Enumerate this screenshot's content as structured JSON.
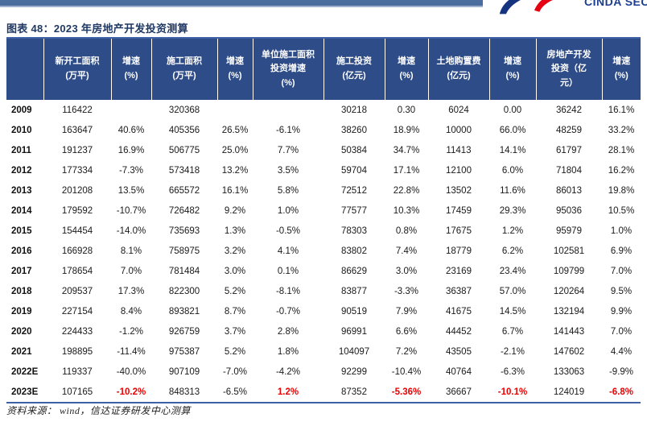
{
  "page": {
    "title": "图表 48：2023 年房地产开发投资测算",
    "logo_text": "CINDA SECUR",
    "source_label": "资料来源：",
    "source_text": "wind，信达证券研发中心测算"
  },
  "colors": {
    "header_bg": "#2E4C87",
    "top_bar": "#4A6D9E",
    "table_border": "#3F61A5",
    "title_color": "#1F3864",
    "highlight_red": "#EE0000",
    "logo_blue": "#16337F",
    "logo_red": "#E60012"
  },
  "table": {
    "headers": [
      "",
      "新开工面积\n(万平)",
      "增速\n(%)",
      "施工面积\n(万平)",
      "增速\n(%)",
      "单位施工面积\n投资增速\n(%)",
      "施工投资\n(亿元)",
      "增速\n(%)",
      "土地购置费\n(亿元)",
      "增速\n(%)",
      "房地产开发\n投资（亿\n元）",
      "增速\n(%)"
    ],
    "rows": [
      {
        "year": "2009",
        "cells": [
          "116422",
          "",
          "320368",
          "",
          "",
          "30218",
          "0.30",
          "6024",
          "0.00",
          "36242",
          "16.1%"
        ],
        "red": []
      },
      {
        "year": "2010",
        "cells": [
          "163647",
          "40.6%",
          "405356",
          "26.5%",
          "-6.1%",
          "38260",
          "18.9%",
          "10000",
          "66.0%",
          "48259",
          "33.2%"
        ],
        "red": []
      },
      {
        "year": "2011",
        "cells": [
          "191237",
          "16.9%",
          "506775",
          "25.0%",
          "7.7%",
          "50384",
          "34.7%",
          "11413",
          "14.1%",
          "61797",
          "28.1%"
        ],
        "red": []
      },
      {
        "year": "2012",
        "cells": [
          "177334",
          "-7.3%",
          "573418",
          "13.2%",
          "3.5%",
          "59704",
          "17.1%",
          "12100",
          "6.0%",
          "71804",
          "16.2%"
        ],
        "red": []
      },
      {
        "year": "2013",
        "cells": [
          "201208",
          "13.5%",
          "665572",
          "16.1%",
          "5.8%",
          "72512",
          "22.8%",
          "13502",
          "11.6%",
          "86013",
          "19.8%"
        ],
        "red": []
      },
      {
        "year": "2014",
        "cells": [
          "179592",
          "-10.7%",
          "726482",
          "9.2%",
          "1.0%",
          "77577",
          "10.3%",
          "17459",
          "29.3%",
          "95036",
          "10.5%"
        ],
        "red": []
      },
      {
        "year": "2015",
        "cells": [
          "154454",
          "-14.0%",
          "735693",
          "1.3%",
          "-0.5%",
          "78303",
          "0.8%",
          "17675",
          "1.2%",
          "95979",
          "1.0%"
        ],
        "red": []
      },
      {
        "year": "2016",
        "cells": [
          "166928",
          "8.1%",
          "758975",
          "3.2%",
          "4.1%",
          "83802",
          "7.4%",
          "18779",
          "6.2%",
          "102581",
          "6.9%"
        ],
        "red": []
      },
      {
        "year": "2017",
        "cells": [
          "178654",
          "7.0%",
          "781484",
          "3.0%",
          "0.1%",
          "86629",
          "3.0%",
          "23169",
          "23.4%",
          "109799",
          "7.0%"
        ],
        "red": []
      },
      {
        "year": "2018",
        "cells": [
          "209537",
          "17.3%",
          "822300",
          "5.2%",
          "-8.1%",
          "83877",
          "-3.3%",
          "36387",
          "57.0%",
          "120264",
          "9.5%"
        ],
        "red": []
      },
      {
        "year": "2019",
        "cells": [
          "227154",
          "8.4%",
          "893821",
          "8.7%",
          "-0.7%",
          "90519",
          "7.9%",
          "41675",
          "14.5%",
          "132194",
          "9.9%"
        ],
        "red": []
      },
      {
        "year": "2020",
        "cells": [
          "224433",
          "-1.2%",
          "926759",
          "3.7%",
          "2.8%",
          "96991",
          "6.6%",
          "44452",
          "6.7%",
          "141443",
          "7.0%"
        ],
        "red": []
      },
      {
        "year": "2021",
        "cells": [
          "198895",
          "-11.4%",
          "975387",
          "5.2%",
          "1.8%",
          "104097",
          "7.2%",
          "43505",
          "-2.1%",
          "147602",
          "4.4%"
        ],
        "red": []
      },
      {
        "year": "2022E",
        "cells": [
          "119337",
          "-40.0%",
          "907109",
          "-7.0%",
          "-4.2%",
          "92299",
          "-10.4%",
          "40764",
          "-6.3%",
          "133063",
          "-9.9%"
        ],
        "red": []
      },
      {
        "year": "2023E",
        "cells": [
          "107165",
          "-10.2%",
          "848313",
          "-6.5%",
          "1.2%",
          "87352",
          "-5.36%",
          "36667",
          "-10.1%",
          "124019",
          "-6.8%"
        ],
        "red": [
          1,
          4,
          6,
          8,
          10
        ]
      }
    ]
  }
}
